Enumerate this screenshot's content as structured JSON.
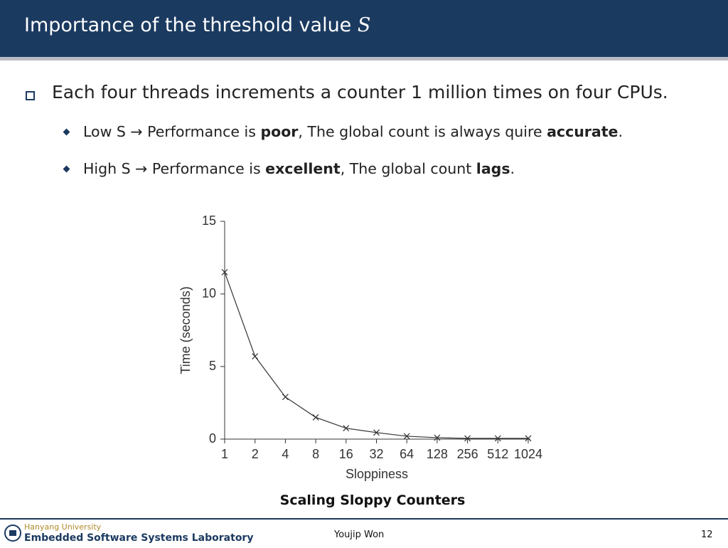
{
  "header": {
    "title": "Importance of the threshold value",
    "title_variable": "S"
  },
  "bullets": [
    {
      "runs": [
        {
          "text": "Each four threads increments a counter 1 million times on four CPUs.",
          "bold": false
        }
      ]
    },
    {
      "runs": [
        {
          "text": "Low S → Performance is ",
          "bold": false
        },
        {
          "text": "poor",
          "bold": true
        },
        {
          "text": ", The global count is always quire ",
          "bold": false
        },
        {
          "text": "accurate",
          "bold": true
        },
        {
          "text": ".",
          "bold": false
        }
      ]
    },
    {
      "runs": [
        {
          "text": "High S → Performance is ",
          "bold": false
        },
        {
          "text": "excellent",
          "bold": true
        },
        {
          "text": ", The global count ",
          "bold": false
        },
        {
          "text": "lags",
          "bold": true
        },
        {
          "text": ".",
          "bold": false
        }
      ]
    }
  ],
  "chart_data": {
    "type": "line",
    "xlabel": "Sloppiness",
    "ylabel": "Time (seconds)",
    "categories": [
      "1",
      "2",
      "4",
      "8",
      "16",
      "32",
      "64",
      "128",
      "256",
      "512",
      "1024"
    ],
    "values": [
      11.5,
      5.7,
      2.9,
      1.5,
      0.75,
      0.45,
      0.2,
      0.1,
      0.05,
      0.05,
      0.05
    ],
    "color": "#333333",
    "marker": "x",
    "ylim": [
      0,
      15
    ],
    "yticks": [
      0,
      5,
      10,
      15
    ]
  },
  "caption": "Scaling Sloppy Counters",
  "footer": {
    "university": "Hanyang University",
    "lab": "Embedded Software Systems Laboratory",
    "author": "Youjip Won",
    "page": "12"
  }
}
